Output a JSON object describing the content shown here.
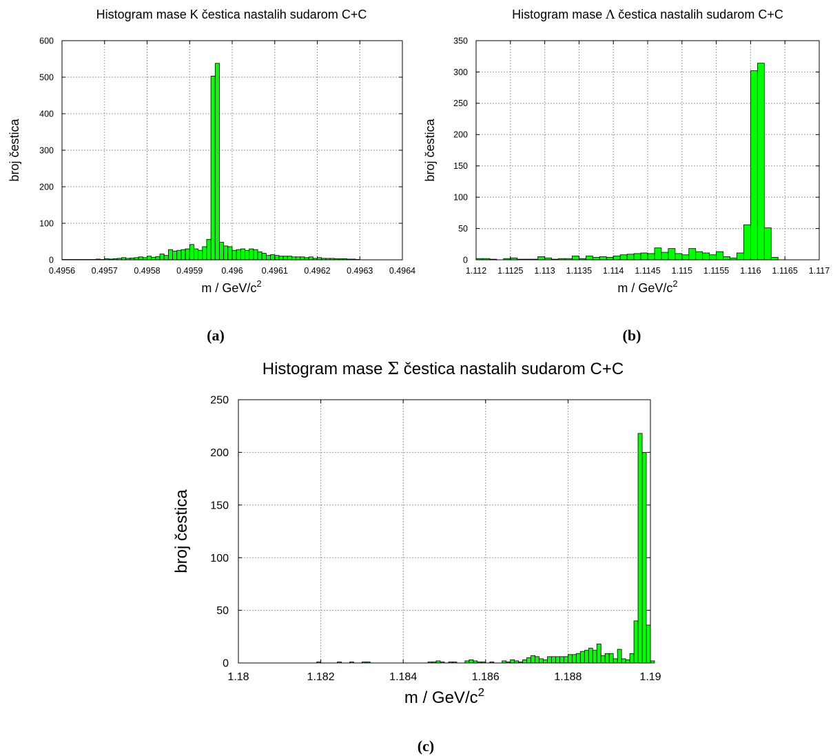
{
  "colors": {
    "bar_fill": "#00ff00",
    "bar_stroke": "#000000",
    "grid": "#9a9a9a"
  },
  "chart_data": [
    {
      "id": "a",
      "type": "bar",
      "caption": "(a)",
      "title_pre": "Histogram mase K čestica nastalih sudarom C+C",
      "title_sym": "",
      "title_post": "",
      "xlabel": "m / GeV/c",
      "xlabel_sup": "2",
      "ylabel": "broj čestica",
      "xlim": [
        0.4956,
        0.4964
      ],
      "ylim": [
        0,
        600
      ],
      "xticks": [
        0.4956,
        0.4957,
        0.4958,
        0.4959,
        0.496,
        0.4961,
        0.4962,
        0.4963,
        0.4964
      ],
      "xtick_labels": [
        "0.4956",
        "0.4957",
        "0.4958",
        "0.4959",
        "0.496",
        "0.4961",
        "0.4962",
        "0.4963",
        "0.4964"
      ],
      "yticks": [
        0,
        100,
        200,
        300,
        400,
        500,
        600
      ],
      "ytick_labels": [
        "0",
        "100",
        "200",
        "300",
        "400",
        "500",
        "600"
      ],
      "grid": true,
      "bin_start": 0.4956,
      "bin_width": 1e-05,
      "values": [
        1,
        1,
        1,
        1,
        1,
        1,
        1,
        1,
        2,
        1,
        3,
        2,
        3,
        4,
        6,
        4,
        5,
        6,
        8,
        6,
        10,
        7,
        9,
        16,
        12,
        28,
        24,
        26,
        28,
        30,
        42,
        30,
        26,
        36,
        56,
        503,
        538,
        48,
        38,
        36,
        26,
        28,
        30,
        26,
        30,
        28,
        22,
        18,
        12,
        14,
        12,
        10,
        10,
        10,
        8,
        8,
        8,
        6,
        8,
        4,
        6,
        4,
        4,
        4,
        3,
        3,
        3,
        2,
        2,
        1
      ]
    },
    {
      "id": "b",
      "type": "bar",
      "caption": "(b)",
      "title_pre": "Histogram mase ",
      "title_sym": "Λ",
      "title_post": " čestica nastalih sudarom C+C",
      "xlabel": "m / GeV/c",
      "xlabel_sup": "2",
      "ylabel": "broj čestica",
      "xlim": [
        1.112,
        1.117
      ],
      "ylim": [
        0,
        350
      ],
      "xticks": [
        1.112,
        1.1125,
        1.113,
        1.1135,
        1.114,
        1.1145,
        1.115,
        1.1155,
        1.116,
        1.1165,
        1.117
      ],
      "xtick_labels": [
        "1.112",
        "1.1125",
        "1.113",
        "1.1135",
        "1.114",
        "1.1145",
        "1.115",
        "1.1155",
        "1.116",
        "1.1165",
        "1.117"
      ],
      "yticks": [
        0,
        50,
        100,
        150,
        200,
        250,
        300,
        350
      ],
      "ytick_labels": [
        "0",
        "50",
        "100",
        "150",
        "200",
        "250",
        "300",
        "350"
      ],
      "grid": true,
      "bin_start": 1.112,
      "bin_width": 0.0001,
      "values": [
        2,
        2,
        1,
        0,
        2,
        3,
        1,
        1,
        1,
        5,
        3,
        1,
        2,
        2,
        6,
        2,
        6,
        4,
        5,
        4,
        6,
        8,
        9,
        10,
        11,
        10,
        19,
        12,
        18,
        10,
        8,
        18,
        13,
        11,
        8,
        13,
        5,
        3,
        11,
        56,
        302,
        314,
        51,
        4,
        0,
        0,
        0,
        0,
        0,
        0
      ]
    },
    {
      "id": "c",
      "type": "bar",
      "caption": "(c)",
      "title_pre": "Histogram mase ",
      "title_sym": "Σ",
      "title_post": " čestica nastalih sudarom C+C",
      "xlabel": "m / GeV/c",
      "xlabel_sup": "2",
      "ylabel": "broj čestica",
      "xlim": [
        1.18,
        1.19
      ],
      "ylim": [
        0,
        250
      ],
      "xticks": [
        1.18,
        1.182,
        1.184,
        1.186,
        1.188,
        1.19
      ],
      "xtick_labels": [
        "1.18",
        "1.182",
        "1.184",
        "1.186",
        "1.188",
        "1.19"
      ],
      "yticks": [
        0,
        50,
        100,
        150,
        200,
        250
      ],
      "ytick_labels": [
        "0",
        "50",
        "100",
        "150",
        "200",
        "250"
      ],
      "grid": true,
      "bin_start": 1.18,
      "bin_width": 0.0001,
      "values": [
        0,
        0,
        0,
        0,
        0,
        0,
        0,
        0,
        0,
        0,
        0,
        0,
        0,
        0,
        0,
        0,
        0,
        0,
        0,
        1,
        0,
        0,
        0,
        0,
        1,
        0,
        0,
        1,
        0,
        0,
        1,
        1,
        0,
        0,
        0,
        0,
        0,
        0,
        0,
        0,
        0,
        0,
        0,
        0,
        0,
        0,
        1,
        1,
        2,
        1,
        0,
        1,
        1,
        0,
        0,
        2,
        3,
        2,
        1,
        1,
        0,
        1,
        0,
        0,
        2,
        1,
        3,
        2,
        1,
        3,
        5,
        7,
        6,
        4,
        3,
        6,
        6,
        6,
        6,
        6,
        8,
        8,
        9,
        11,
        12,
        14,
        12,
        18,
        7,
        9,
        9,
        4,
        13,
        4,
        3,
        9,
        40,
        218,
        200,
        36,
        2,
        0,
        0,
        0,
        0,
        0,
        0,
        0,
        0,
        0
      ]
    }
  ]
}
